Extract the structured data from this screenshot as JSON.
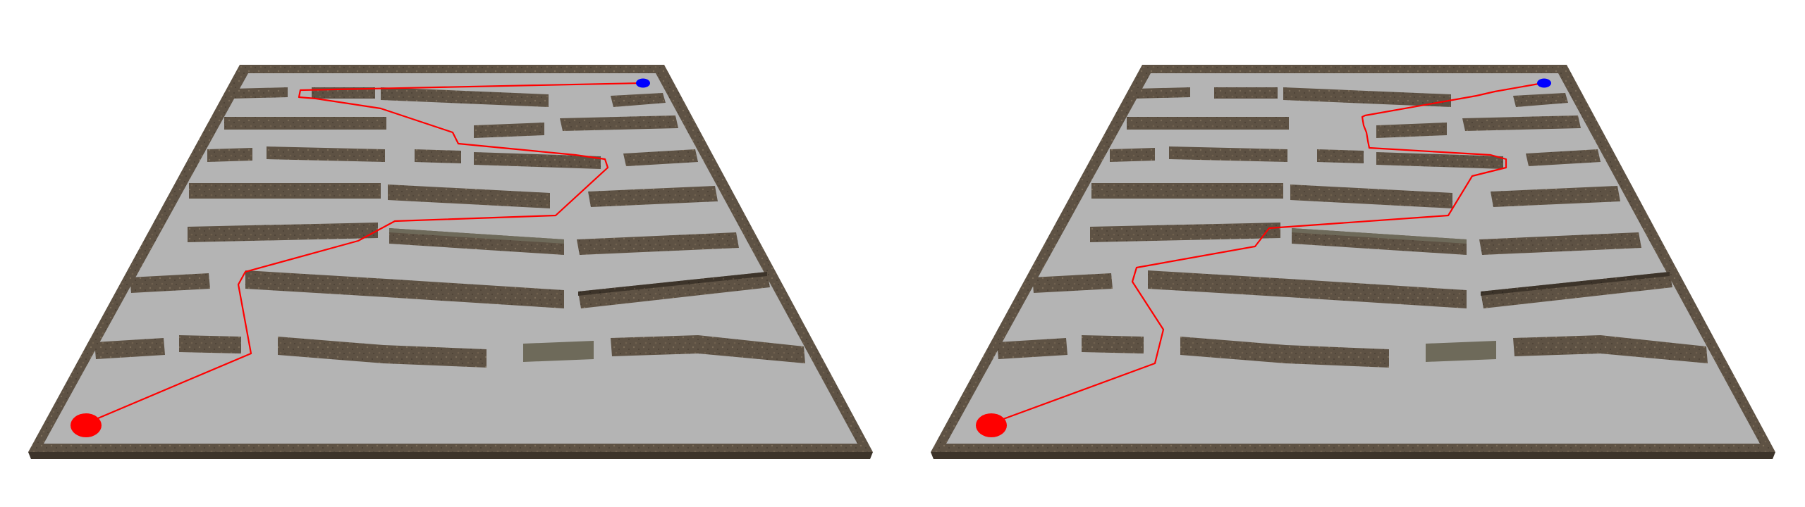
{
  "colors": {
    "background": "#ffffff",
    "floor": "#b4b4b4",
    "wall": "#5e5244",
    "wall_dark": "#3d342a",
    "wall_gray": "#6e6a5a",
    "path": "#ff0000",
    "start": "#ff0000",
    "goal": "#0000ff"
  },
  "icons": {
    "start_marker": "red-ellipse",
    "goal_marker": "blue-ellipse"
  }
}
